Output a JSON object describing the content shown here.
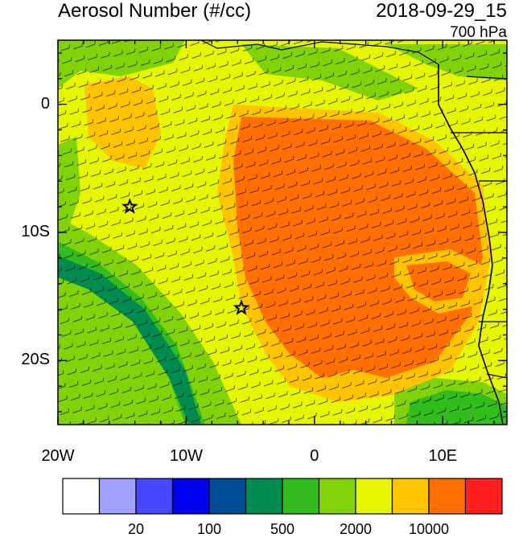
{
  "header": {
    "title": "Aerosol Number (#/cc)",
    "datetime": "2018-09-29_15",
    "level": "700 hPa"
  },
  "axes": {
    "lat_ticks": [
      {
        "label": "0",
        "value": 0
      },
      {
        "label": "10S",
        "value": -10
      },
      {
        "label": "20S",
        "value": -20
      }
    ],
    "lon_ticks": [
      {
        "label": "20W",
        "value": -20
      },
      {
        "label": "10W",
        "value": -10
      },
      {
        "label": "0",
        "value": 0
      },
      {
        "label": "10E",
        "value": 10
      }
    ]
  },
  "colorbar": {
    "colors": [
      "#ffffff",
      "#a0a0ff",
      "#4848ff",
      "#0000f0",
      "#004b96",
      "#008c50",
      "#32bc1e",
      "#82d20a",
      "#e6f500",
      "#ffc400",
      "#ff7000",
      "#ff1e1e"
    ],
    "labels": [
      "20",
      "100",
      "500",
      "2000",
      "10000"
    ]
  },
  "markers": [
    {
      "name": "station-star-west",
      "lon": -14.4,
      "lat": -8.0
    },
    {
      "name": "station-star-south",
      "lon": -5.7,
      "lat": -15.9
    }
  ]
}
